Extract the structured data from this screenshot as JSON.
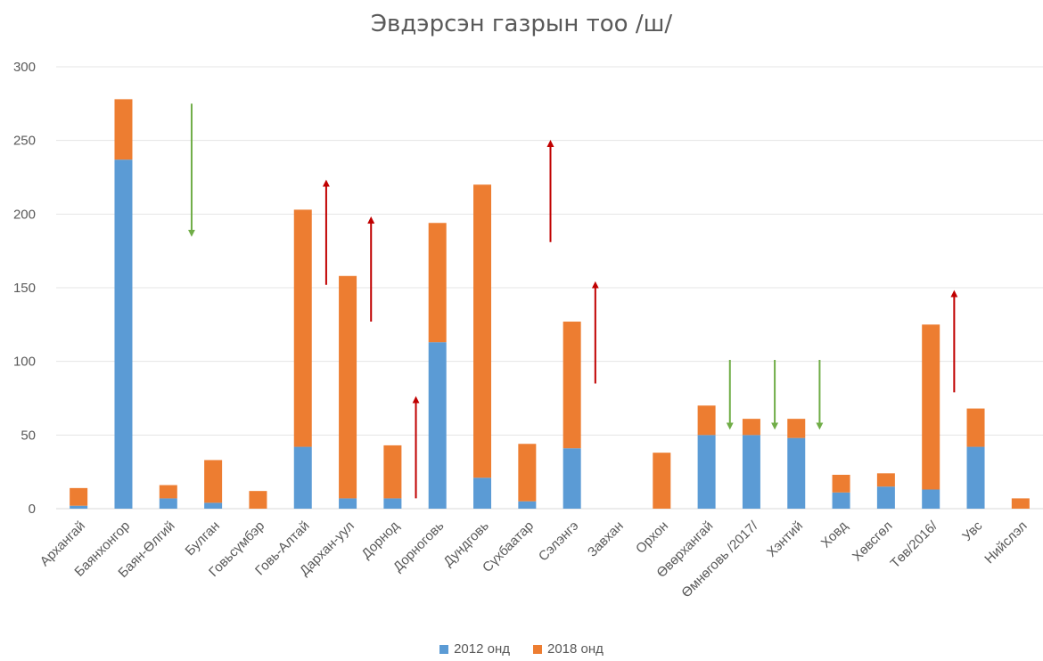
{
  "chart_data": {
    "type": "bar",
    "stacked": true,
    "title": "Эвдэрсэн газрын тоо /ш/",
    "categories": [
      "Архангай",
      "Баянхонгор",
      "Баян-Өлгий",
      "Булган",
      "Говьсүмбэр",
      "Говь-Алтай",
      "Дархан-уул",
      "Дорнод",
      "Дорноговь",
      "Дундговь",
      "Сүхбаатар",
      "Сэлэнгэ",
      "Завхан",
      "Орхон",
      "Өвөрхангай",
      "Өмнөговь /2017/",
      "Хэнтий",
      "Ховд",
      "Хөвсгөл",
      "Төв/2016/",
      "Увс",
      "Нийслэл"
    ],
    "series": [
      {
        "name": "2012 онд",
        "color": "#5b9bd5",
        "values": [
          2,
          237,
          7,
          4,
          0,
          42,
          7,
          7,
          113,
          21,
          5,
          41,
          0,
          0,
          50,
          50,
          48,
          11,
          15,
          13,
          42,
          0
        ]
      },
      {
        "name": "2018 онд",
        "color": "#ed7d31",
        "values": [
          12,
          41,
          9,
          29,
          12,
          161,
          151,
          36,
          81,
          199,
          39,
          86,
          0,
          38,
          20,
          11,
          13,
          12,
          9,
          112,
          26,
          7
        ]
      }
    ],
    "ylim": [
      0,
      300
    ],
    "yticks": [
      0,
      50,
      100,
      150,
      200,
      250,
      300
    ],
    "grid": true,
    "legend_position": "bottom",
    "annotations": [
      {
        "type": "arrow",
        "direction": "down",
        "color": "#70ad47",
        "category": "Баян-Өлгий",
        "from": 275,
        "to": 187
      },
      {
        "type": "arrow",
        "direction": "up",
        "color": "#c00000",
        "category": "Говь-Алтай",
        "from": 152,
        "to": 221
      },
      {
        "type": "arrow",
        "direction": "up",
        "color": "#c00000",
        "category": "Дархан-уул",
        "from": 127,
        "to": 196
      },
      {
        "type": "arrow",
        "direction": "up",
        "color": "#c00000",
        "category": "Дорнод",
        "from": 7,
        "to": 74
      },
      {
        "type": "arrow",
        "direction": "up",
        "color": "#c00000",
        "category": "Сүхбаатар",
        "from": 181,
        "to": 248
      },
      {
        "type": "arrow",
        "direction": "up",
        "color": "#c00000",
        "category": "Сэлэнгэ",
        "from": 85,
        "to": 152
      },
      {
        "type": "arrow",
        "direction": "down",
        "color": "#70ad47",
        "category": "Өвөрхангай",
        "from": 101,
        "to": 56
      },
      {
        "type": "arrow",
        "direction": "down",
        "color": "#70ad47",
        "category": "Өмнөговь /2017/",
        "from": 101,
        "to": 56
      },
      {
        "type": "arrow",
        "direction": "down",
        "color": "#70ad47",
        "category": "Хэнтий",
        "from": 101,
        "to": 56
      },
      {
        "type": "arrow",
        "direction": "up",
        "color": "#c00000",
        "category": "Төв/2016/",
        "from": 79,
        "to": 146
      }
    ]
  }
}
